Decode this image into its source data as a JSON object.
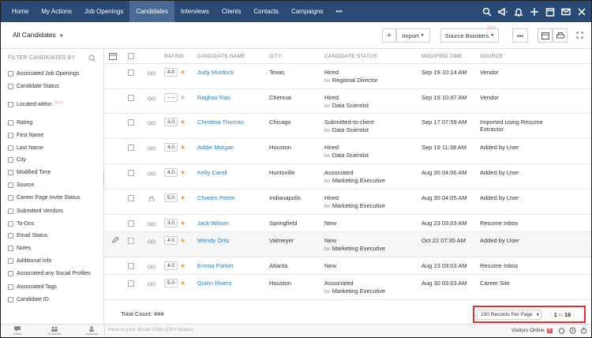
{
  "nav": {
    "items": [
      "Home",
      "My Actions",
      "Job Openings",
      "Candidates",
      "Interviews",
      "Clients",
      "Contacts",
      "Campaigns",
      "•••"
    ],
    "active_index": 3
  },
  "header": {
    "view_label": "All Candidates",
    "import_label": "Import",
    "source_boosters_label": "Source Boosters",
    "new_tag": "New",
    "more_label": "•••"
  },
  "sidebar": {
    "title": "FILTER CANDIDATES BY",
    "group1": [
      "Associated Job Openings",
      "Candidate Status"
    ],
    "located": "Located within",
    "located_new": "New",
    "group2": [
      "Rating",
      "First Name",
      "Last Name",
      "City",
      "Modified Time",
      "Source",
      "Career Page Invite Status",
      "Submitted Vendors",
      "To-Dos",
      "Email Status",
      "Notes",
      "Additional Info",
      "Associated any Social Profiles",
      "Associated Tags",
      "Candidate ID"
    ]
  },
  "table": {
    "headers": {
      "rating": "RATING",
      "name": "CANDIDATE NAME",
      "city": "CITY",
      "status": "CANDIDATE STATUS",
      "modified": "MODIFIED TIME",
      "source": "SOURCE"
    },
    "for_label": "for",
    "rows": [
      {
        "rating": "4.0",
        "name": "Judy Murdock",
        "city": "Texas",
        "status": "Hired",
        "job": "Regional Director",
        "modified": "Sep 19 10:14 AM",
        "source": "Vendor"
      },
      {
        "rating": "– –",
        "name": "Raghav Rao",
        "city": "Chennai",
        "status": "Hired",
        "job": "Data Scientist",
        "modified": "Sep 19 10:47 AM",
        "source": "Vendor"
      },
      {
        "rating": "3.0",
        "name": "Christina Thomas",
        "city": "Chicago",
        "status": "Submitted-to-client",
        "job": "Data Scientist",
        "modified": "Sep 17 07:59 AM",
        "source": "Imported using Resume Extractor"
      },
      {
        "rating": "4.0",
        "name": "Addie Morgan",
        "city": "Houston",
        "status": "Hired",
        "job": "Data Scientist",
        "modified": "Sep 19 11:38 AM",
        "source": "Added by User"
      },
      {
        "rating": "4.0",
        "name": "Kelly Carell",
        "city": "Huntsville",
        "status": "Associated",
        "job": "Marketing Executive",
        "modified": "Aug 30 04:06 AM",
        "source": "Added by User"
      },
      {
        "rating": "5.0",
        "name": "Charles Petrin",
        "city": "Indianapolis",
        "status": "Hired",
        "job": "Marketing Executive",
        "modified": "Aug 30 04:05 AM",
        "source": "Added by User"
      },
      {
        "rating": "3.0",
        "name": "Jack Wilson",
        "city": "Springfield",
        "status": "New",
        "job": "",
        "modified": "Aug 23 03:03 AM",
        "source": "Resume Inbox"
      },
      {
        "rating": "4.0",
        "name": "Wendy Ortiz",
        "city": "Valmeyer",
        "status": "New",
        "job": "Marketing Executive",
        "modified": "Oct 22 07:35 AM",
        "source": "Added by User"
      },
      {
        "rating": "4.0",
        "name": "Emma Parker",
        "city": "Atlanta",
        "status": "New",
        "job": "",
        "modified": "Aug 23 03:03 AM",
        "source": "Resume Inbox"
      },
      {
        "rating": "5.0",
        "name": "Quinn Rivers",
        "city": "Houston",
        "status": "Associated",
        "job": "Marketing Executive",
        "modified": "Aug 30 03:03 AM",
        "source": "Career Site"
      }
    ]
  },
  "footer": {
    "total_label": "Total Count: ###",
    "records_per_page": "100 Records Per Page",
    "page_from": "1",
    "page_to_label": "to",
    "page_to": "16"
  },
  "bottombar": {
    "chats": "Chats",
    "channels": "Channels",
    "contacts": "Contacts",
    "chat_placeholder": "Here is your Smart Chat (Ctrl+Space)",
    "visitors": "Visitors Online",
    "visitors_count": "0"
  },
  "colors": {
    "nav_bg": "#2a4a76",
    "link": "#2b7ec1",
    "star": "#f0a030",
    "highlight_border": "#e03030"
  }
}
